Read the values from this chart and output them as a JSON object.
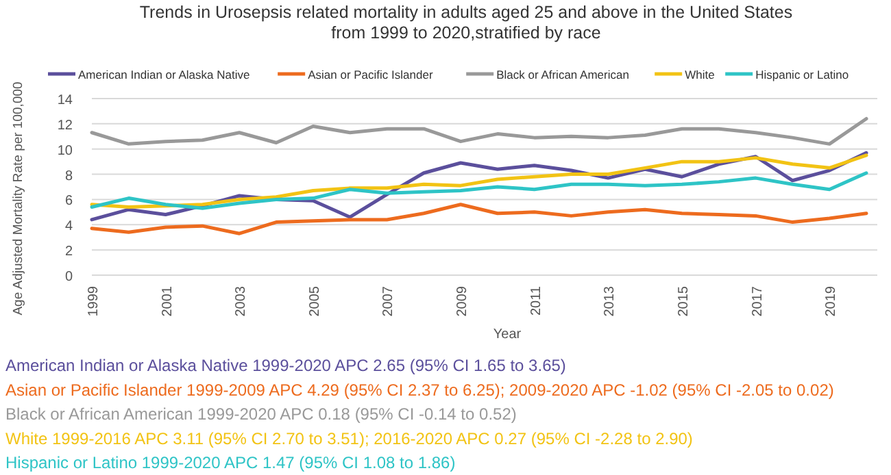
{
  "chart_data": {
    "type": "line",
    "title": "Trends in Urosepsis related mortality in adults aged 25 and above in the United States\nfrom 1999 to 2020,stratified by race",
    "xlabel": "Year",
    "ylabel": "Age Adjusted Mortality Rate per 100,000",
    "categories": [
      "1999",
      null,
      "2001",
      null,
      "2003",
      null,
      "2005",
      null,
      "2007",
      null,
      "2009",
      null,
      "2011",
      null,
      "2013",
      null,
      "2015",
      null,
      "2017",
      null,
      "2019",
      null
    ],
    "series": [
      {
        "name": "American Indian or Alaska Native",
        "color": "#5b4f9c",
        "values": [
          4.4,
          5.2,
          4.8,
          5.5,
          6.3,
          6.0,
          5.9,
          4.6,
          6.4,
          8.1,
          8.9,
          8.4,
          8.7,
          8.3,
          7.7,
          8.4,
          7.8,
          8.8,
          9.4,
          7.5,
          8.3,
          9.7
        ]
      },
      {
        "name": "Asian or Pacific Islander",
        "color": "#ed6b1e",
        "values": [
          3.7,
          3.4,
          3.8,
          3.9,
          3.3,
          4.2,
          4.3,
          4.4,
          4.4,
          4.9,
          5.6,
          4.9,
          5.0,
          4.7,
          5.0,
          5.2,
          4.9,
          4.8,
          4.7,
          4.2,
          4.5,
          4.9
        ]
      },
      {
        "name": "Black or African American",
        "color": "#999999",
        "values": [
          11.3,
          10.4,
          10.6,
          10.7,
          11.3,
          10.5,
          11.8,
          11.3,
          11.6,
          11.6,
          10.6,
          11.2,
          10.9,
          11.0,
          10.9,
          11.1,
          11.6,
          11.6,
          11.3,
          10.9,
          10.4,
          12.4
        ]
      },
      {
        "name": "White",
        "color": "#f2c314",
        "values": [
          5.6,
          5.4,
          5.5,
          5.6,
          6.0,
          6.2,
          6.7,
          6.9,
          6.9,
          7.2,
          7.1,
          7.6,
          7.8,
          8.0,
          8.0,
          8.5,
          9.0,
          9.0,
          9.3,
          8.8,
          8.5,
          9.5
        ]
      },
      {
        "name": "Hispanic or Latino",
        "color": "#2ec4c6",
        "values": [
          5.4,
          6.1,
          5.6,
          5.3,
          5.7,
          6.0,
          6.1,
          6.8,
          6.5,
          6.6,
          6.7,
          7.0,
          6.8,
          7.2,
          7.2,
          7.1,
          7.2,
          7.4,
          7.7,
          7.2,
          6.8,
          8.1
        ]
      }
    ],
    "ylim": [
      0,
      14
    ],
    "yticks": [
      0,
      2,
      4,
      6,
      8,
      10,
      12,
      14
    ],
    "grid": "y",
    "legend": "top",
    "line_style": "solid",
    "marker": "none",
    "annotations": [
      "American Indian or Alaska Native 1999-2020 APC 2.65 (95% CI 1.65 to 3.65)",
      "Asian or Pacific Islander 1999-2009 APC 4.29 (95% CI 2.37 to 6.25); 2009-2020 APC -1.02 (95% CI -2.05 to 0.02)",
      "Black or African American 1999-2020 APC 0.18 (95% CI -0.14 to 0.52)",
      "White 1999-2016 APC 3.11 (95% CI 2.70 to 3.51); 2016-2020 APC 0.27 (95% CI -2.28 to 2.90)",
      "Hispanic or Latino 1999-2020 APC 1.47 (95% CI 1.08 to 1.86)"
    ]
  }
}
